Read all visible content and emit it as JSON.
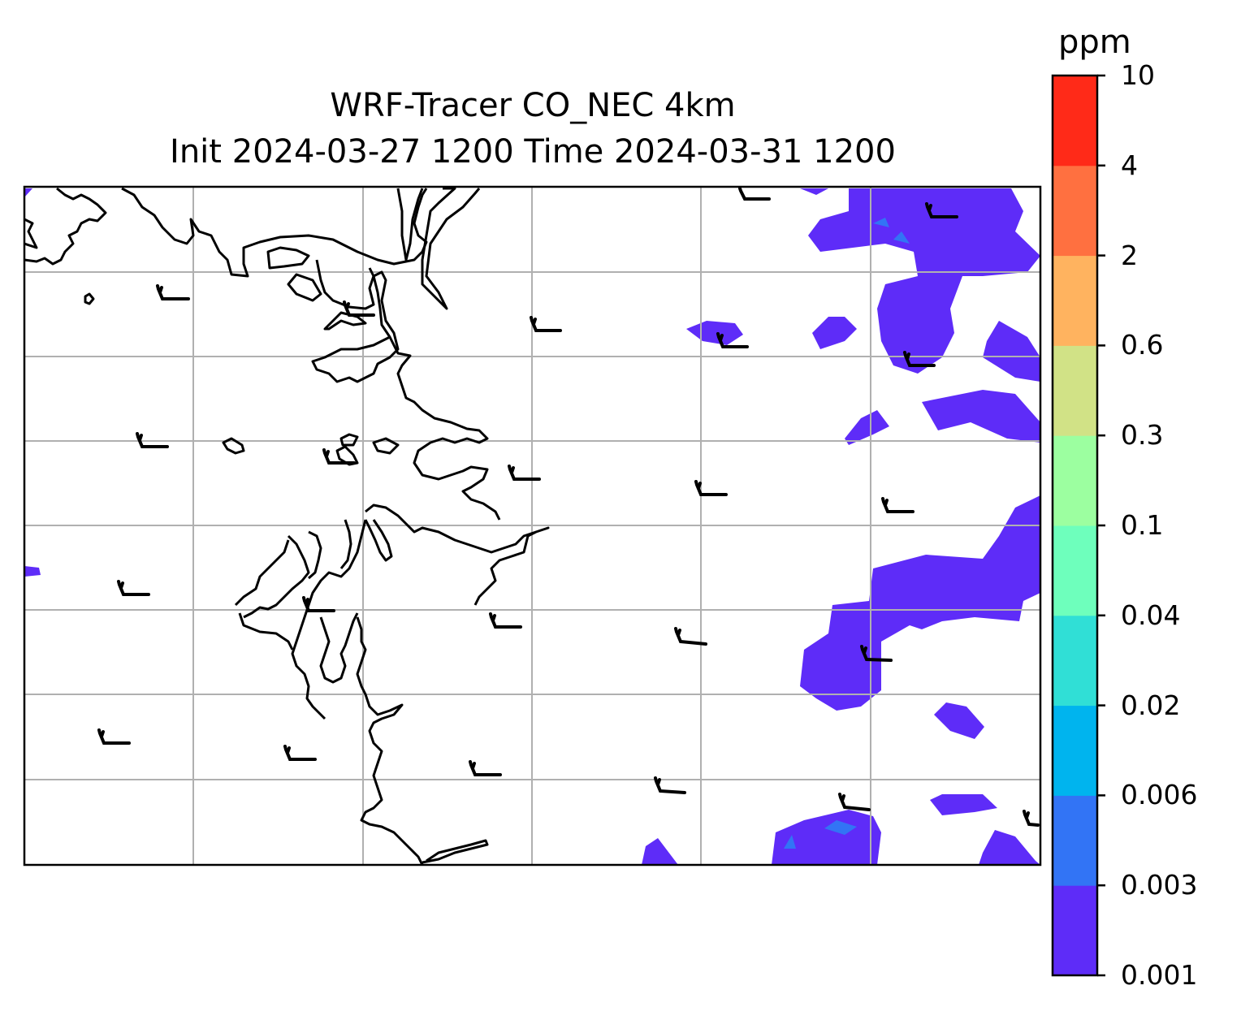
{
  "title": {
    "line1": "WRF-Tracer CO_NEC 4km",
    "line2": "Init 2024-03-27 1200 Time 2024-03-31 1200"
  },
  "colorbar": {
    "unit": "ppm",
    "levels": [
      "0.001",
      "0.003",
      "0.006",
      "0.02",
      "0.04",
      "0.1",
      "0.3",
      "0.6",
      "2",
      "4",
      "10"
    ],
    "colors": [
      "#5e2cf8",
      "#3274f5",
      "#00b4ee",
      "#30dfd6",
      "#6effbc",
      "#9cffa0",
      "#d1e286",
      "#ffb35f",
      "#ff7040",
      "#ff2a18"
    ]
  },
  "map": {
    "gridlines": true,
    "coastline_color": "#000000",
    "fill_color": "#5e2cf8",
    "wind_barbs": 26
  }
}
